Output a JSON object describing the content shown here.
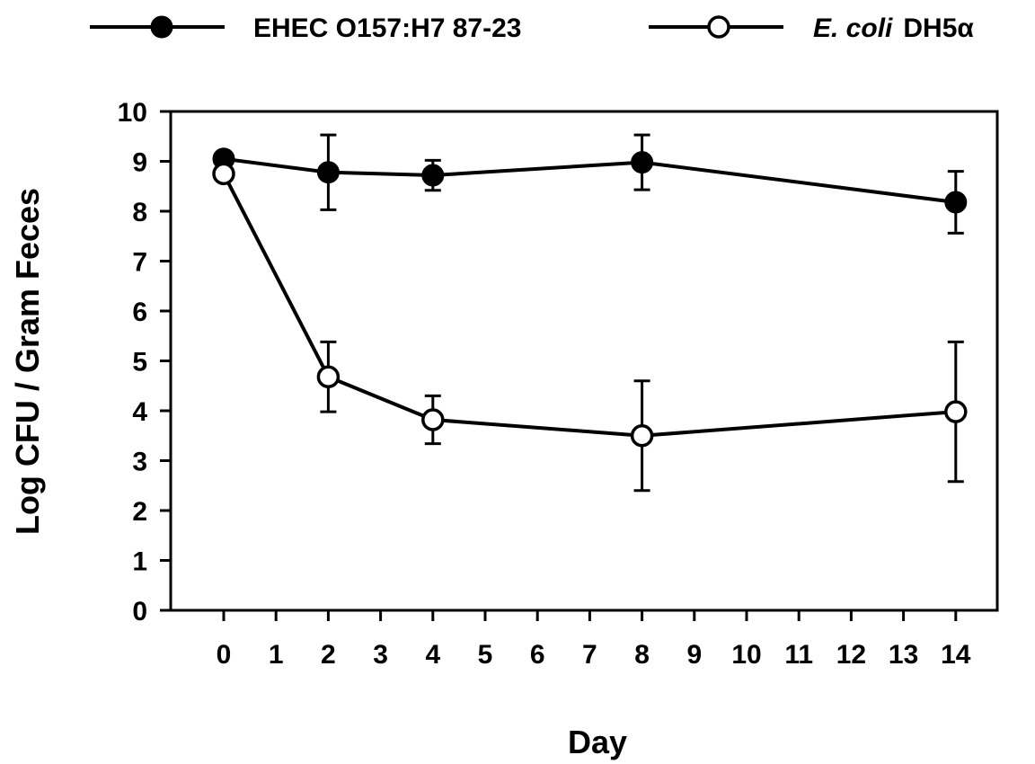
{
  "chart_data": {
    "type": "line",
    "title": "",
    "xlabel": "Day",
    "ylabel": "Log CFU / Gram Feces",
    "xlim": [
      -1,
      15
    ],
    "ylim": [
      0,
      10
    ],
    "x_ticks": [
      0,
      1,
      2,
      3,
      4,
      5,
      6,
      7,
      8,
      9,
      10,
      11,
      12,
      13,
      14
    ],
    "y_ticks": [
      0,
      1,
      2,
      3,
      4,
      5,
      6,
      7,
      8,
      9,
      10
    ],
    "grid": false,
    "legend_position": "top",
    "series": [
      {
        "name": "EHEC O157:H7 87-23",
        "marker": "filled-circle",
        "color": "#000000",
        "x": [
          0,
          2,
          4,
          8,
          14
        ],
        "y": [
          9.05,
          8.78,
          8.72,
          8.98,
          8.18
        ],
        "error": [
          0.0,
          0.75,
          0.3,
          0.55,
          0.62
        ]
      },
      {
        "name_italic": "E. coli",
        "name": "DH5α",
        "marker": "open-circle",
        "color": "#000000",
        "x": [
          0,
          2,
          4,
          8,
          14
        ],
        "y": [
          8.75,
          4.68,
          3.82,
          3.5,
          3.98
        ],
        "error": [
          0.0,
          0.7,
          0.48,
          1.1,
          1.4
        ]
      }
    ]
  }
}
